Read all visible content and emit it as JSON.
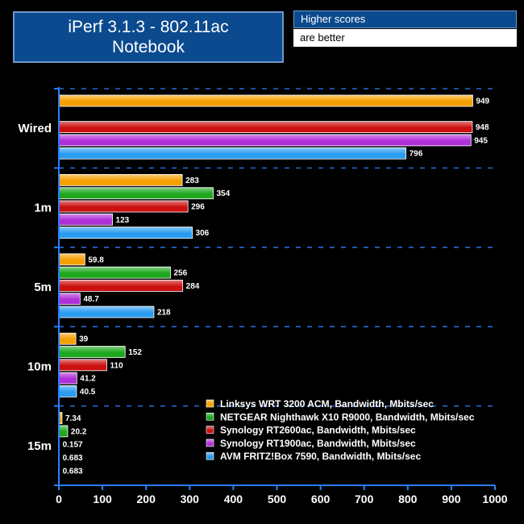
{
  "header": {
    "title_line1": "iPerf 3.1.3 - 802.11ac",
    "title_line2": "Notebook",
    "note_line1": "Higher scores",
    "note_line2": "are better"
  },
  "chart_data": {
    "type": "bar",
    "orientation": "horizontal",
    "categories": [
      "Wired",
      "1m",
      "5m",
      "10m",
      "15m"
    ],
    "series": [
      {
        "name": "Linksys WRT 3200 ACM, Bandwidth, Mbits/sec",
        "color": "#f5a000",
        "values": [
          949,
          283,
          59.8,
          39,
          7.34
        ],
        "labels": [
          "949",
          "283",
          "59.8",
          "39",
          "7.34"
        ]
      },
      {
        "name": "NETGEAR Nighthawk X10 R9000, Bandwidth, Mbits/sec",
        "color": "#1ea81e",
        "values": [
          null,
          354,
          256,
          152,
          20.2
        ],
        "labels": [
          "",
          "354",
          "256",
          "152",
          "20.2"
        ]
      },
      {
        "name": "Synology RT2600ac, Bandwidth, Mbits/sec",
        "color": "#cc1010",
        "values": [
          948,
          296,
          284,
          110,
          0.157
        ],
        "labels": [
          "948",
          "296",
          "284",
          "110",
          "0.157"
        ]
      },
      {
        "name": "Synology RT1900ac, Bandwidth, Mbits/sec",
        "color": "#b030d8",
        "values": [
          945,
          123,
          48.7,
          41.2,
          0.683
        ],
        "labels": [
          "945",
          "123",
          "48.7",
          "41.2",
          "0.683"
        ]
      },
      {
        "name": "AVM FRITZ!Box 7590, Bandwidth, Mbits/sec",
        "color": "#2a9cf0",
        "values": [
          796,
          306,
          218,
          40.5,
          0.683
        ],
        "labels": [
          "796",
          "306",
          "218",
          "40.5",
          "0.683"
        ]
      }
    ],
    "xlim": [
      0,
      1000
    ],
    "xticks": [
      "0",
      "100",
      "200",
      "300",
      "400",
      "500",
      "600",
      "700",
      "800",
      "900",
      "1000"
    ],
    "grid": "dashed horizontal separators between categories",
    "legend": "bottom-right",
    "axis_color": "#2a7fff"
  }
}
